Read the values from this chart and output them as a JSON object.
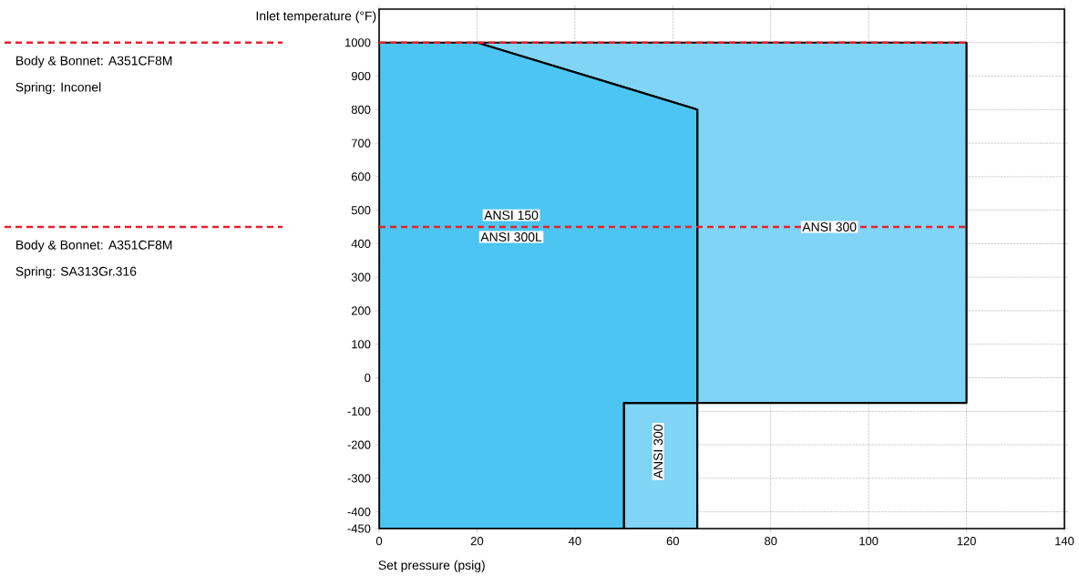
{
  "chart_data": {
    "type": "area",
    "xlabel": "Set pressure (psig)",
    "ylabel": "Inlet temperature (°F)",
    "xlim": [
      0,
      140
    ],
    "ylim": [
      -450,
      1100
    ],
    "xticks": [
      0,
      20,
      40,
      60,
      80,
      100,
      120,
      140
    ],
    "yticks": [
      -450,
      -400,
      -300,
      -200,
      -100,
      0,
      100,
      200,
      300,
      400,
      500,
      600,
      700,
      800,
      900,
      1000
    ],
    "grid": true,
    "series": [
      {
        "color": "#80d4f5",
        "x": [
          20,
          65,
          65,
          120
        ],
        "values": [
          null,
          null,
          null,
          null
        ],
        "upper": [
          1000,
          1000,
          1000,
          1000
        ],
        "lower": [
          1000,
          800,
          -75,
          -75
        ]
      },
      {
        "color": "#80d4f5",
        "x": [
          50,
          65
        ],
        "values": [
          null,
          null
        ],
        "upper": [
          -75,
          -75
        ],
        "lower": [
          -450,
          -450
        ]
      },
      {
        "color": "#4dc5f2",
        "x": [
          0,
          20,
          50,
          50,
          65
        ],
        "values": [
          null,
          null,
          null,
          null,
          null
        ],
        "upper": [
          1000,
          1000,
          867,
          867,
          800
        ],
        "lower": [
          -450,
          -450,
          -450,
          -75,
          -75
        ]
      }
    ],
    "ref_lines": [
      {
        "axis": "y",
        "value": 1000,
        "color": "#e8202a",
        "line_style": "dashed"
      },
      {
        "axis": "y",
        "value": 450,
        "color": "#e8202a",
        "line_style": "dashed"
      }
    ],
    "annotations": [
      "Body & Bonnet: A351CF8M",
      "Spring: Inconel",
      "Body & Bonnet: A351CF8M",
      "Spring: SA313Gr.316",
      "ANSI 150",
      "ANSI 300L",
      "ANSI 300",
      {
        "text": "ANSI 300",
        "x": 92,
        "y": 450
      }
    ]
  }
}
